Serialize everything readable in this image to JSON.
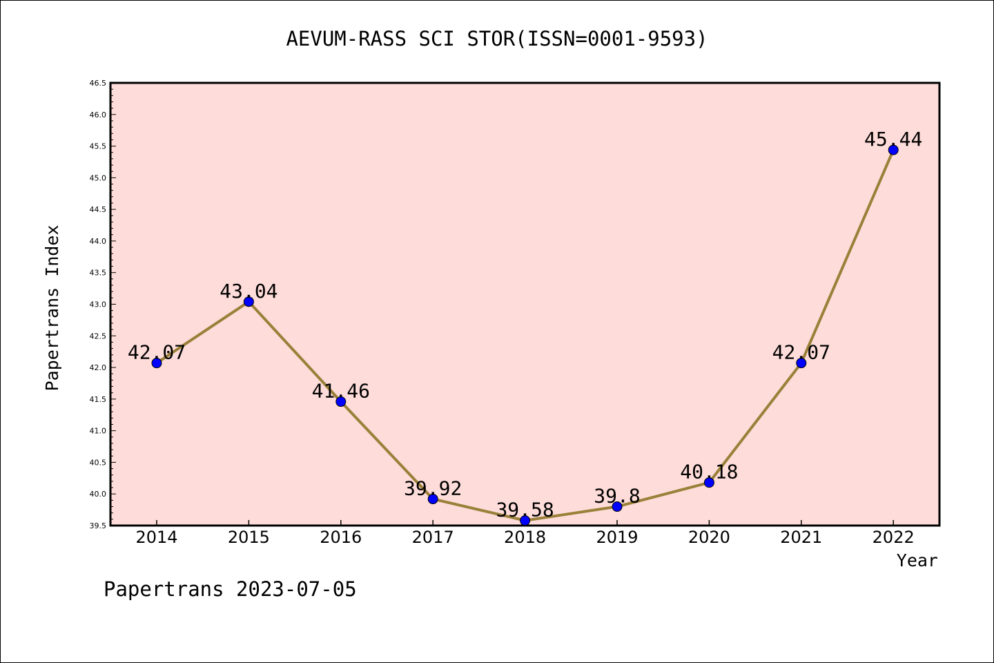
{
  "chart_data": {
    "type": "line",
    "title": "AEVUM-RASS SCI STOR(ISSN=0001-9593)",
    "xlabel": "Year",
    "ylabel": "Papertrans Index",
    "categories": [
      "2014",
      "2015",
      "2016",
      "2017",
      "2018",
      "2019",
      "2020",
      "2021",
      "2022"
    ],
    "values": [
      42.07,
      43.04,
      41.46,
      39.92,
      39.58,
      39.8,
      40.18,
      42.07,
      45.44
    ],
    "value_labels": [
      "42.07",
      "43.04",
      "41.46",
      "39.92",
      "39.58",
      "39.8",
      "40.18",
      "42.07",
      "45.44"
    ],
    "ylim": [
      39.5,
      46.5
    ],
    "yticks": [
      "39.5",
      "40.0",
      "40.5",
      "41.0",
      "41.5",
      "42.0",
      "42.5",
      "43.0",
      "43.5",
      "44.0",
      "44.5",
      "45.0",
      "45.5",
      "46.0",
      "46.5"
    ],
    "grid": false,
    "colors": {
      "plot_background": "#fddcd9",
      "line": "#9a8039",
      "marker": "#0000ff"
    }
  },
  "footer": "Papertrans 2023-07-05"
}
